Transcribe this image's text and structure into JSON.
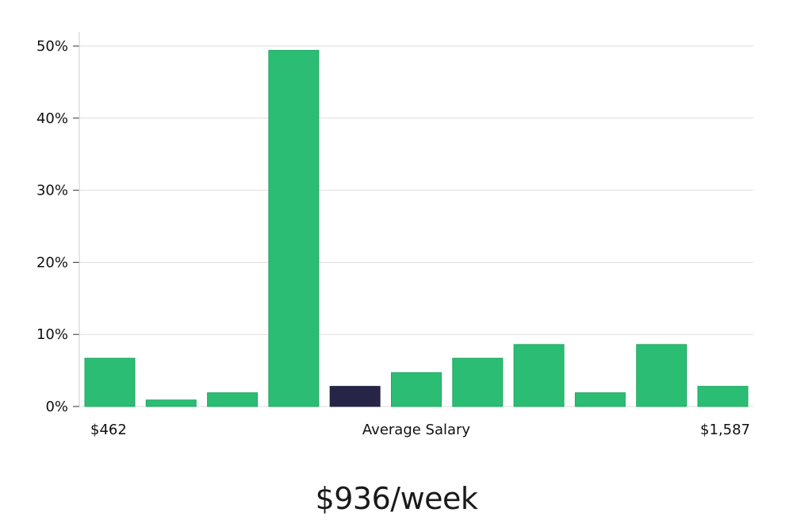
{
  "chart_data": {
    "type": "bar",
    "values": [
      6.7,
      0.9,
      1.9,
      49.4,
      2.8,
      4.7,
      6.7,
      8.6,
      1.9,
      8.6,
      2.8
    ],
    "highlight_index": 4,
    "ylim": [
      0,
      52
    ],
    "yticks": [
      0,
      10,
      20,
      30,
      40,
      50
    ],
    "ytick_labels": [
      "0%",
      "10%",
      "20%",
      "30%",
      "40%",
      "50%"
    ],
    "x_min_label": "$462",
    "x_center_label": "Average Salary",
    "x_max_label": "$1,587",
    "grid": true,
    "colors": {
      "bar": "#2bbd74",
      "bar_stroke": "#22a864",
      "highlight": "#272547",
      "grid": "#dddddd",
      "axis": "#cccccc"
    }
  },
  "headline": "$936/week"
}
